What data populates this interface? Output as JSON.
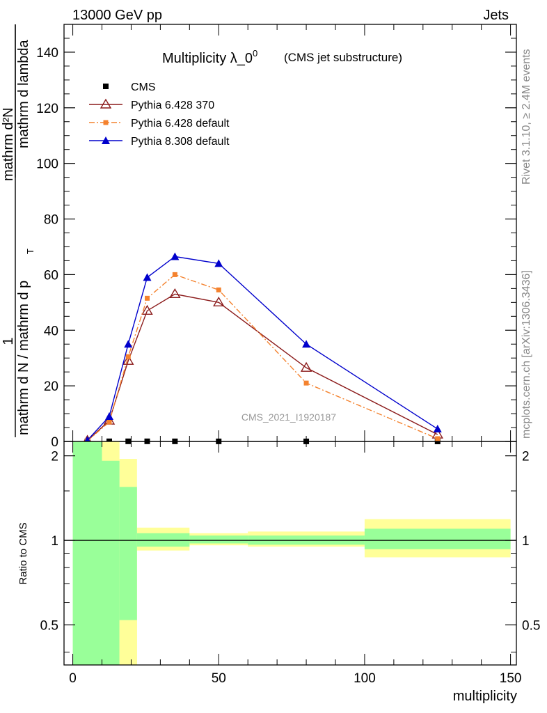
{
  "header": {
    "energy_label": "13000 GeV pp",
    "process_label": "Jets"
  },
  "side_labels": {
    "rivet": "Rivet 3.1.10, ≥ 2.4M events",
    "mcplots": "mcplots.cern.ch [arXiv:1306.3436]"
  },
  "colors": {
    "cms": "#000000",
    "pythia6_370": "#8b1a1a",
    "pythia6_default": "#f4822e",
    "pythia8_default": "#0000cc",
    "band_inner": "#99ff99",
    "band_outer": "#ffff99"
  },
  "chart_data": [
    {
      "type": "line",
      "title_main": "Multiplicity λ_0",
      "title_sup": "0",
      "title_note": "(CMS jet substructure)",
      "ylabel_top": "1",
      "ylabel_num": "mathrm d²N",
      "ylabel_den": "mathrm d N / mathrm d p",
      "ylabel_den2": "T",
      "ylabel_den3": "mathrm d lambda",
      "analysis_label": "CMS_2021_I1920187",
      "xlim": [
        -3,
        152
      ],
      "ylim": [
        0,
        150
      ],
      "y_ticks": [
        0,
        20,
        40,
        60,
        80,
        100,
        120,
        140
      ],
      "y_tick_labels": [
        "0",
        "20",
        "40",
        "60",
        "80",
        "100",
        "120",
        "140"
      ],
      "series": [
        {
          "name": "CMS",
          "marker": "square",
          "x": [
            5,
            12.5,
            19,
            25.5,
            35,
            50,
            80,
            125
          ],
          "y": [
            0.02,
            0.05,
            0.05,
            0.05,
            0.04,
            0.03,
            0.02,
            0.01
          ]
        },
        {
          "name": "Pythia 6.428 370",
          "marker": "open-triangle",
          "line": "solid",
          "x": [
            5,
            12.5,
            19,
            25.5,
            35,
            50,
            80,
            125
          ],
          "y": [
            0.3,
            7.5,
            29,
            47,
            53,
            50,
            26.5,
            2.5
          ]
        },
        {
          "name": "Pythia 6.428 default",
          "marker": "square",
          "line": "dash-dot",
          "x": [
            5,
            12.5,
            19,
            25.5,
            35,
            50,
            80,
            125
          ],
          "y": [
            0.2,
            7.0,
            30.5,
            51.5,
            60,
            54.5,
            21,
            1.0
          ]
        },
        {
          "name": "Pythia 8.308 default",
          "marker": "filled-triangle",
          "line": "solid",
          "x": [
            5,
            12.5,
            19,
            25.5,
            35,
            50,
            80,
            125
          ],
          "y": [
            0.4,
            9,
            35,
            59,
            66.5,
            64,
            35,
            4.5
          ]
        }
      ],
      "legend_position": "top-left"
    },
    {
      "type": "area",
      "ylabel": "Ratio to CMS",
      "xlabel": "multiplicity",
      "xlim": [
        -3,
        152
      ],
      "ylim": [
        0.36,
        2.25
      ],
      "y_scale": "log",
      "y_ticks": [
        0.5,
        1,
        2
      ],
      "y_tick_labels": [
        "0.5",
        "1",
        "2"
      ],
      "x_ticks": [
        0,
        50,
        100,
        150
      ],
      "x_tick_labels": [
        "0",
        "50",
        "100",
        "150"
      ],
      "reference_line": 1,
      "bins": [
        {
          "lo": 0,
          "hi": 10,
          "inner": [
            0.36,
            2.25
          ],
          "outer": [
            0.36,
            2.25
          ]
        },
        {
          "lo": 10,
          "hi": 16,
          "inner": [
            0.36,
            1.92
          ],
          "outer": [
            0.36,
            2.25
          ]
        },
        {
          "lo": 16,
          "hi": 22,
          "inner": [
            0.36,
            1.55
          ],
          "outer": [
            0.36,
            1.95
          ]
        },
        {
          "lo": 22,
          "hi": 40,
          "inner": [
            0.95,
            1.06
          ],
          "outer": [
            0.92,
            1.11
          ]
        },
        {
          "lo": 40,
          "hi": 60,
          "inner": [
            0.975,
            1.04
          ],
          "outer": [
            0.96,
            1.06
          ]
        },
        {
          "lo": 60,
          "hi": 100,
          "inner": [
            0.965,
            1.04
          ],
          "outer": [
            0.95,
            1.075
          ]
        },
        {
          "lo": 100,
          "hi": 150,
          "inner": [
            0.93,
            1.1
          ],
          "outer": [
            0.87,
            1.19
          ]
        }
      ],
      "inner_bin_extra": {
        "lo": 16,
        "hi": 22,
        "inner_low": 0.52
      }
    }
  ]
}
